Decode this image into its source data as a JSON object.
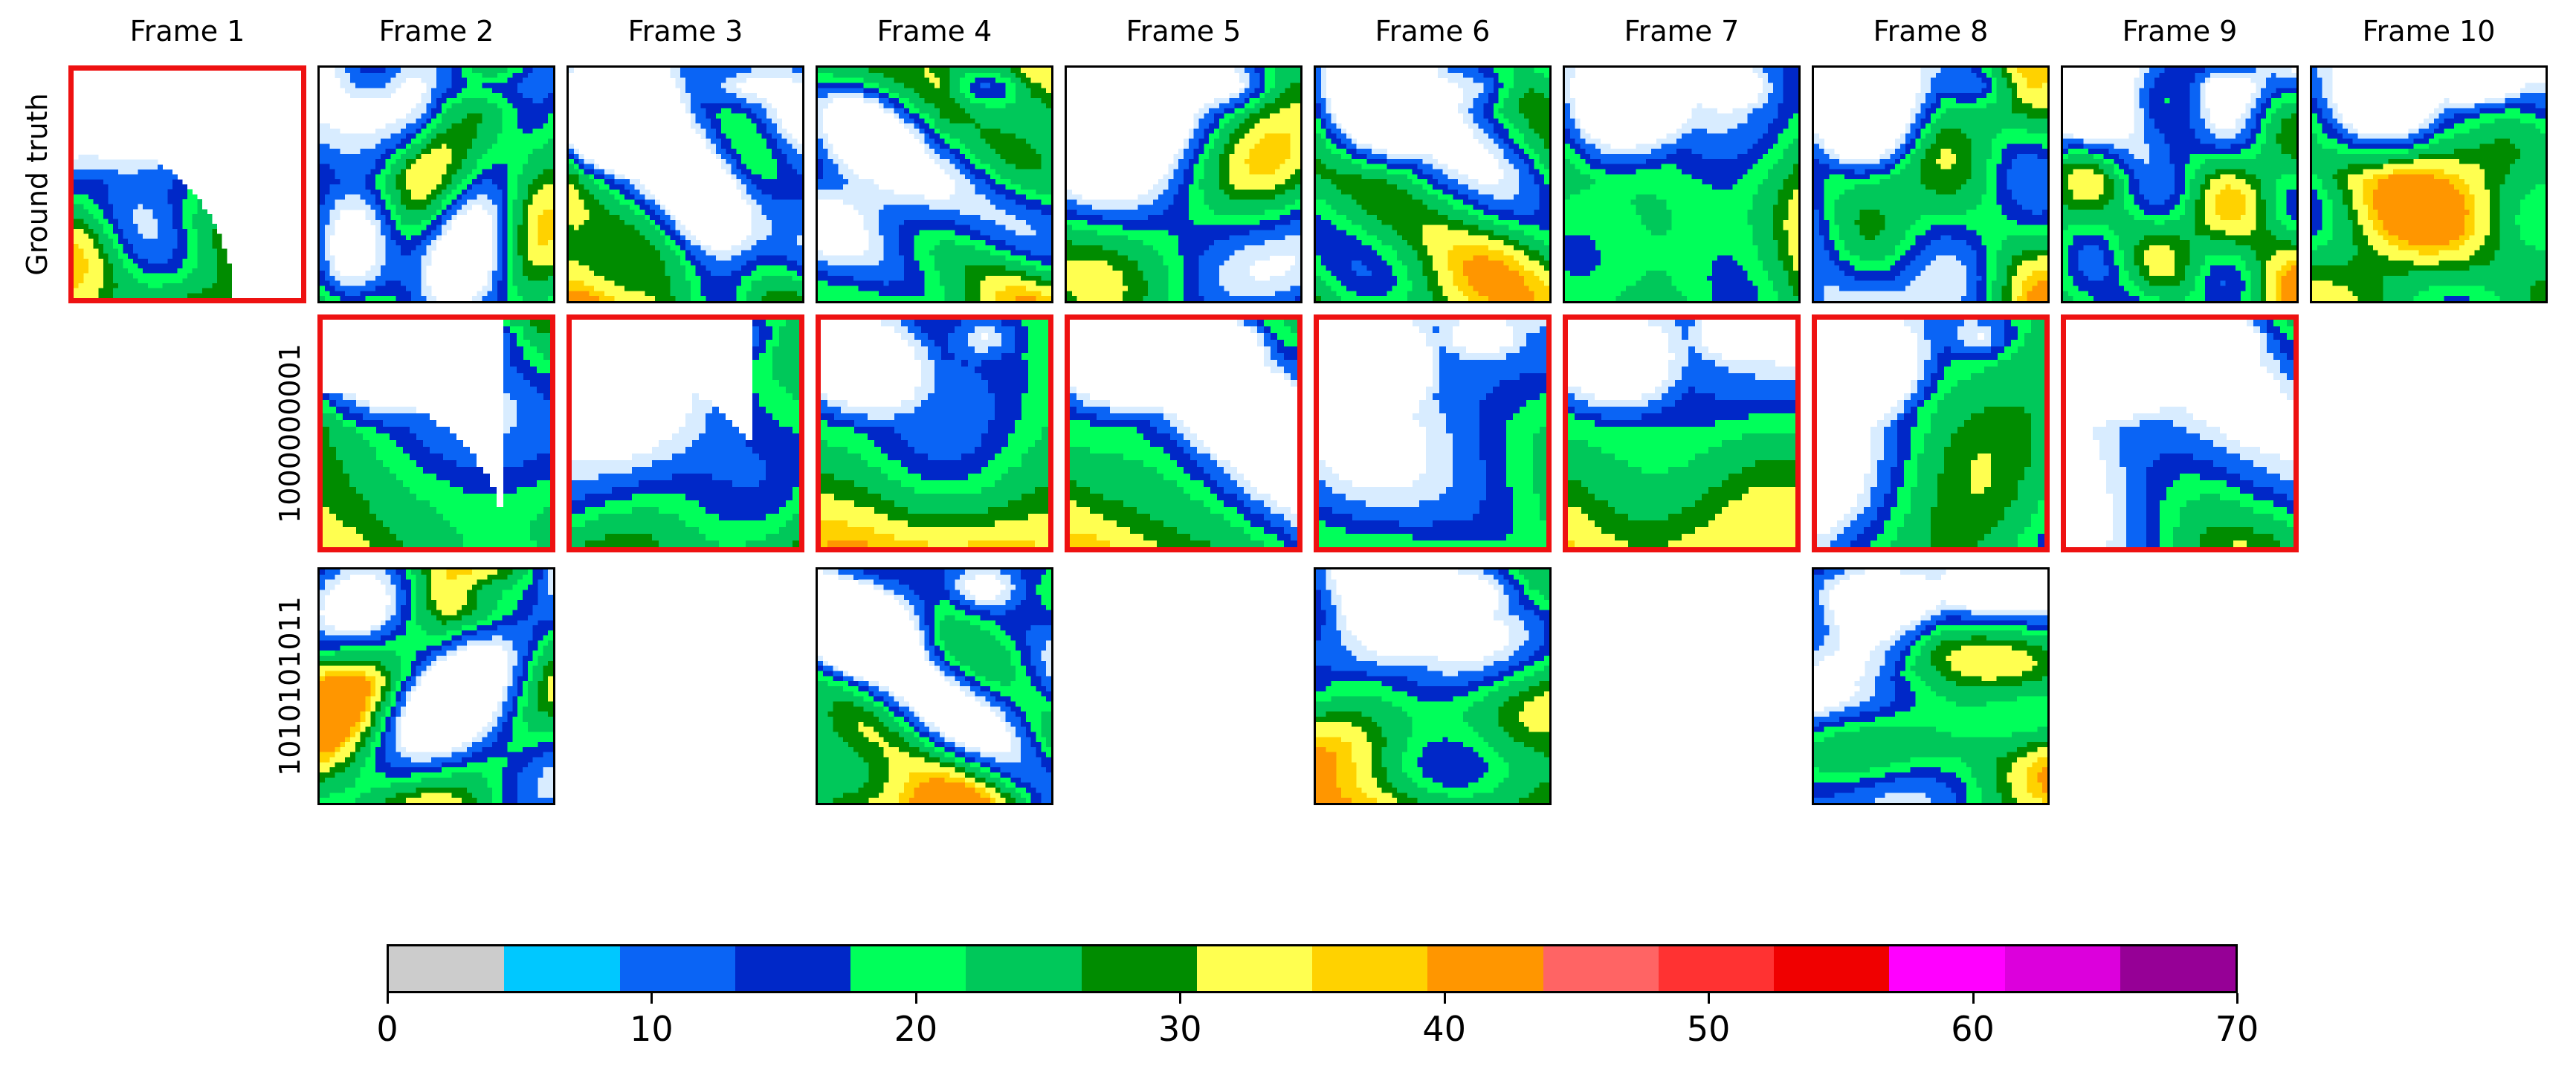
{
  "columns": [
    "Frame 1",
    "Frame 2",
    "Frame 3",
    "Frame 4",
    "Frame 5",
    "Frame 6",
    "Frame 7",
    "Frame 8",
    "Frame 9",
    "Frame 10"
  ],
  "rows": [
    {
      "label": "Ground truth",
      "frames": [
        1,
        2,
        3,
        4,
        5,
        6,
        7,
        8,
        9,
        10
      ],
      "highlighted": [
        1
      ]
    },
    {
      "label": "1000000001",
      "frames": [
        2,
        3,
        4,
        5,
        6,
        7,
        8,
        9
      ],
      "highlighted": [
        2,
        3,
        4,
        5,
        6,
        7,
        8,
        9
      ]
    },
    {
      "label": "1010101011",
      "frames": [
        2,
        4,
        6,
        8
      ],
      "highlighted": []
    }
  ],
  "colorbar": {
    "min": 0,
    "max": 70,
    "step": 5,
    "tick_labels": [
      "0",
      "10",
      "20",
      "30",
      "40",
      "50",
      "60",
      "70"
    ],
    "colors": [
      "#cccccc",
      "#00c8ff",
      "#0a64f5",
      "#0028c8",
      "#00ff5a",
      "#00c85a",
      "#008c00",
      "#ffff50",
      "#ffd200",
      "#ff9600",
      "#ff6464",
      "#ff3232",
      "#f00000",
      "#ff00ff",
      "#dc00dc",
      "#960096"
    ]
  },
  "highlight_color": "#ee1111"
}
